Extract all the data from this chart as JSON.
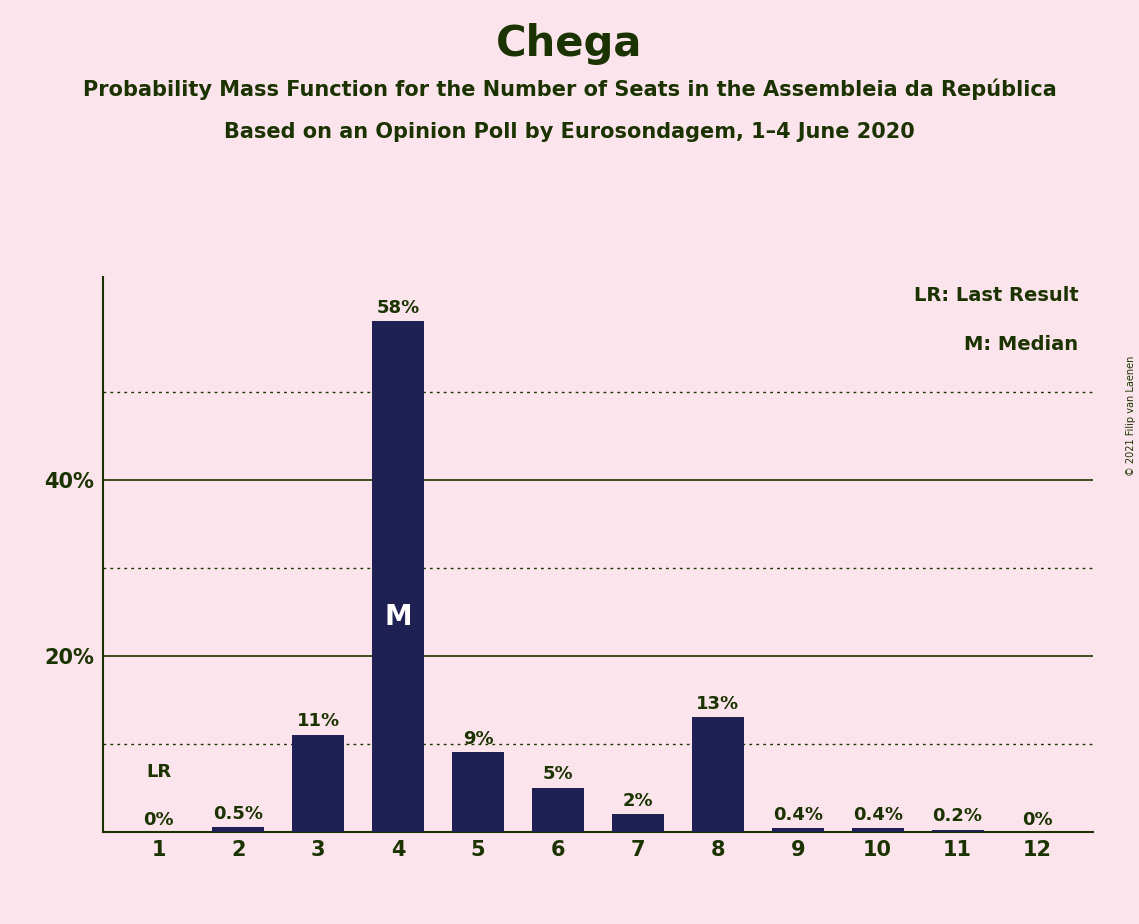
{
  "title": "Chega",
  "subtitle1": "Probability Mass Function for the Number of Seats in the Assembleia da República",
  "subtitle2": "Based on an Opinion Poll by Eurosondagem, 1–4 June 2020",
  "copyright": "© 2021 Filip van Laenen",
  "legend_lr": "LR: Last Result",
  "legend_m": "M: Median",
  "categories": [
    1,
    2,
    3,
    4,
    5,
    6,
    7,
    8,
    9,
    10,
    11,
    12
  ],
  "values": [
    0.0,
    0.5,
    11.0,
    58.0,
    9.0,
    5.0,
    2.0,
    13.0,
    0.4,
    0.4,
    0.2,
    0.0
  ],
  "labels": [
    "0%",
    "0.5%",
    "11%",
    "58%",
    "9%",
    "5%",
    "2%",
    "13%",
    "0.4%",
    "0.4%",
    "0.2%",
    "0%"
  ],
  "bar_color": "#1f2155",
  "background_color": "#fce4ec",
  "text_color": "#1a3300",
  "median_bar": 4,
  "lr_bar": 1,
  "dotted_grid_levels": [
    10,
    30,
    50
  ],
  "solid_grid_levels": [
    20,
    40
  ],
  "ylim": [
    0,
    63
  ],
  "ytick_show": [
    20,
    40
  ],
  "bar_width": 0.65
}
